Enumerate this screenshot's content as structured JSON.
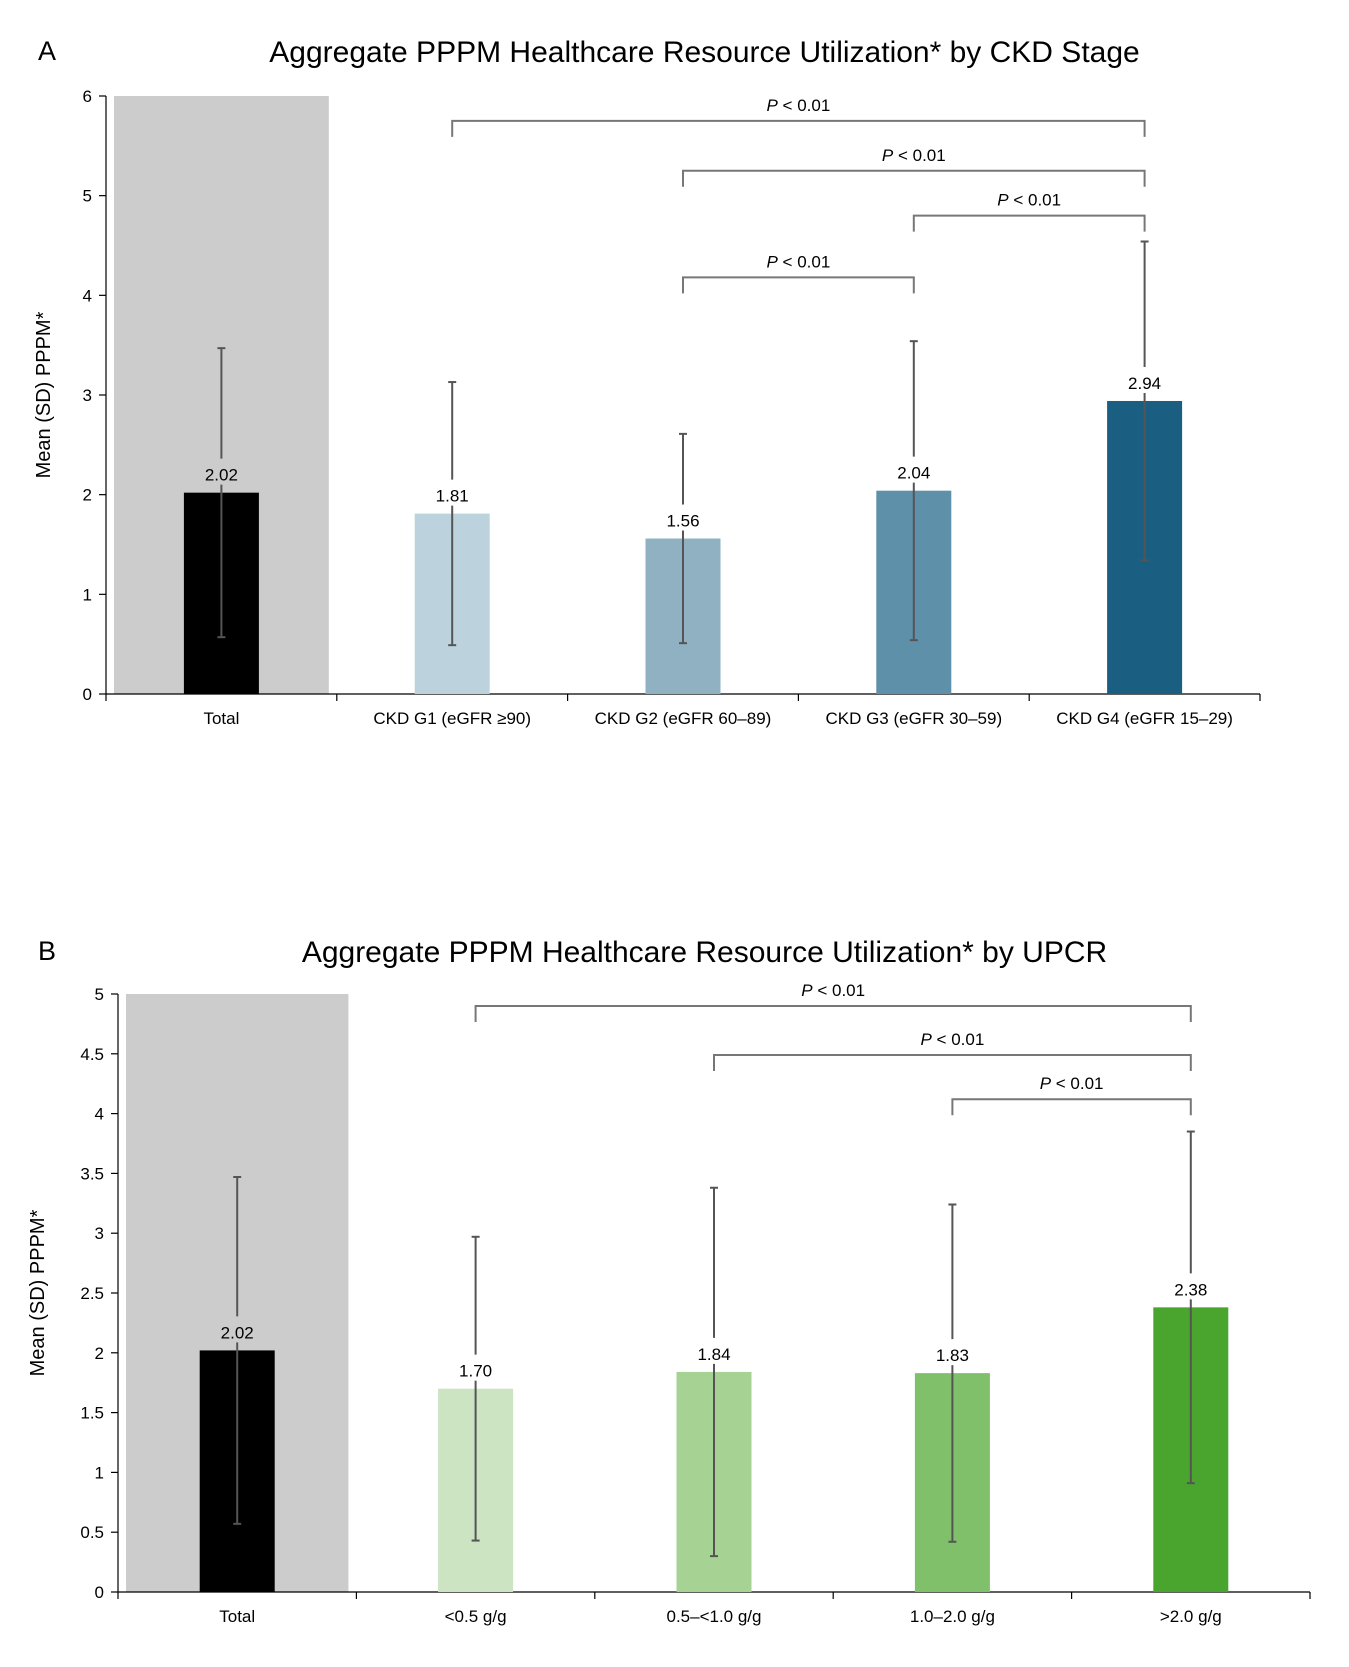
{
  "chart_data": [
    {
      "panel": "A",
      "type": "bar",
      "title": "Aggregate PPPM Healthcare Resource Utilization* by CKD Stage",
      "ylabel": "Mean (SD) PPPM*",
      "ylim": [
        0,
        6
      ],
      "yticks": [
        "0",
        "1",
        "2",
        "3",
        "4",
        "5",
        "6"
      ],
      "categories": [
        "Total",
        "CKD G1 (eGFR ≥90)",
        "CKD G2 (eGFR 60–89)",
        "CKD G3 (eGFR 30–59)",
        "CKD G4 (eGFR 15–29)"
      ],
      "values": [
        2.02,
        1.81,
        1.56,
        2.04,
        2.94
      ],
      "value_labels": [
        "2.02",
        "1.81",
        "1.56",
        "2.04",
        "2.94"
      ],
      "sd": [
        1.45,
        1.32,
        1.05,
        1.5,
        1.6
      ],
      "colors": [
        "#000000",
        "#bcd3dd",
        "#8fb1c1",
        "#5e91a9",
        "#1a5f82"
      ],
      "highlight_category": "Total",
      "highlight_color": "#cccccc",
      "brackets": [
        {
          "from": "CKD G1 (eGFR ≥90)",
          "to": "CKD G4 (eGFR 15–29)",
          "label": "P < 0.01",
          "y": 5.75
        },
        {
          "from": "CKD G2 (eGFR 60–89)",
          "to": "CKD G4 (eGFR 15–29)",
          "label": "P < 0.01",
          "y": 5.25
        },
        {
          "from": "CKD G3 (eGFR 30–59)",
          "to": "CKD G4 (eGFR 15–29)",
          "label": "P < 0.01",
          "y": 4.8
        },
        {
          "from": "CKD G2 (eGFR 60–89)",
          "to": "CKD G3 (eGFR 30–59)",
          "label": "P < 0.01",
          "y": 4.18
        }
      ]
    },
    {
      "panel": "B",
      "type": "bar",
      "title": "Aggregate PPPM Healthcare Resource Utilization* by UPCR",
      "ylabel": "Mean (SD) PPPM*",
      "ylim": [
        0,
        5
      ],
      "yticks": [
        "0",
        "0.5",
        "1",
        "1.5",
        "2",
        "2.5",
        "3",
        "3.5",
        "4",
        "4.5",
        "5"
      ],
      "categories": [
        "Total",
        "<0.5 g/g",
        "0.5–<1.0 g/g",
        "1.0–2.0 g/g",
        ">2.0 g/g"
      ],
      "values": [
        2.02,
        1.7,
        1.84,
        1.83,
        2.38
      ],
      "value_labels": [
        "2.02",
        "1.70",
        "1.84",
        "1.83",
        "2.38"
      ],
      "sd": [
        1.45,
        1.27,
        1.54,
        1.41,
        1.47
      ],
      "colors": [
        "#000000",
        "#cce4c1",
        "#a6d394",
        "#81c06b",
        "#4aa52e"
      ],
      "highlight_category": "Total",
      "highlight_color": "#cccccc",
      "brackets": [
        {
          "from": "<0.5 g/g",
          "to": ">2.0 g/g",
          "label": "P < 0.01",
          "y": 4.9
        },
        {
          "from": "0.5–<1.0 g/g",
          "to": ">2.0 g/g",
          "label": "P < 0.01",
          "y": 4.49
        },
        {
          "from": "1.0–2.0 g/g",
          "to": ">2.0 g/g",
          "label": "P < 0.01",
          "y": 4.12
        }
      ]
    }
  ],
  "panels": {
    "a_letter": "A",
    "b_letter": "B"
  }
}
